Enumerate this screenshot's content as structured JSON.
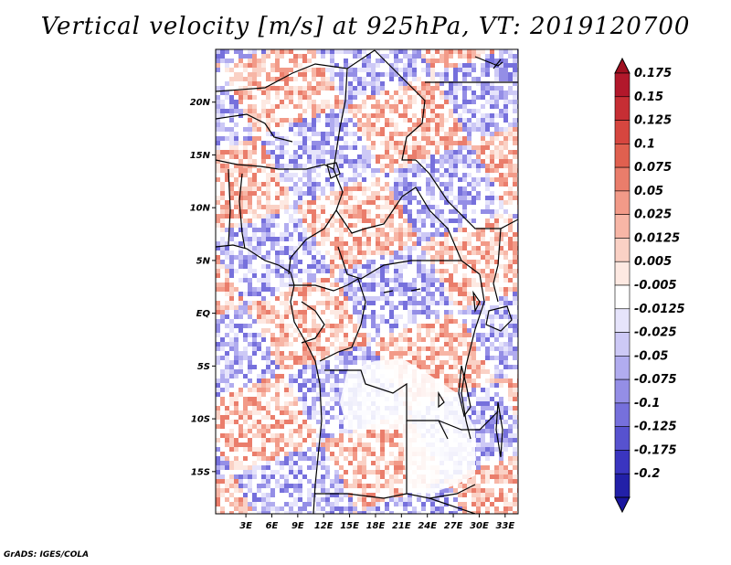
{
  "title": "Vertical velocity [m/s] at 925hPa, VT: 2019120700",
  "footer": "GrADS: IGES/COLA",
  "map": {
    "lat_range": [
      -19,
      25
    ],
    "lon_range": [
      -0.5,
      34.5
    ],
    "lat_labels": [
      {
        "lat": 20,
        "text": "20N"
      },
      {
        "lat": 15,
        "text": "15N"
      },
      {
        "lat": 10,
        "text": "10N"
      },
      {
        "lat": 5,
        "text": "5N"
      },
      {
        "lat": 0,
        "text": "EQ"
      },
      {
        "lat": -5,
        "text": "5S"
      },
      {
        "lat": -10,
        "text": "10S"
      },
      {
        "lat": -15,
        "text": "15S"
      }
    ],
    "lon_labels": [
      {
        "lon": 3,
        "text": "3E"
      },
      {
        "lon": 6,
        "text": "6E"
      },
      {
        "lon": 9,
        "text": "9E"
      },
      {
        "lon": 12,
        "text": "12E"
      },
      {
        "lon": 15,
        "text": "15E"
      },
      {
        "lon": 18,
        "text": "18E"
      },
      {
        "lon": 21,
        "text": "21E"
      },
      {
        "lon": 24,
        "text": "24E"
      },
      {
        "lon": 27,
        "text": "27E"
      },
      {
        "lon": 30,
        "text": "30E"
      },
      {
        "lon": 33,
        "text": "33E"
      }
    ]
  },
  "colorbar": {
    "levels": [
      {
        "label": "0.175",
        "color": "#b2182b"
      },
      {
        "label": "0.15",
        "color": "#c62e34"
      },
      {
        "label": "0.125",
        "color": "#d6463f"
      },
      {
        "label": "0.1",
        "color": "#e0604f"
      },
      {
        "label": "0.075",
        "color": "#ea7d6b"
      },
      {
        "label": "0.05",
        "color": "#f29a88"
      },
      {
        "label": "0.025",
        "color": "#f7b6a6"
      },
      {
        "label": "0.0125",
        "color": "#fad1c5"
      },
      {
        "label": "0.005",
        "color": "#fde9e2"
      },
      {
        "label": "-0.005",
        "color": "#ffffff"
      },
      {
        "label": "-0.0125",
        "color": "#e6e4fb"
      },
      {
        "label": "-0.025",
        "color": "#cdc9f6"
      },
      {
        "label": "-0.05",
        "color": "#b1acef"
      },
      {
        "label": "-0.075",
        "color": "#948ee6"
      },
      {
        "label": "-0.1",
        "color": "#7670dc"
      },
      {
        "label": "-0.125",
        "color": "#5752cf"
      },
      {
        "label": "-0.175",
        "color": "#3a35c0"
      },
      {
        "label": "-0.2",
        "color": "#2220a8"
      }
    ],
    "top_color": "#a01020",
    "bottom_color": "#1a16a0"
  }
}
